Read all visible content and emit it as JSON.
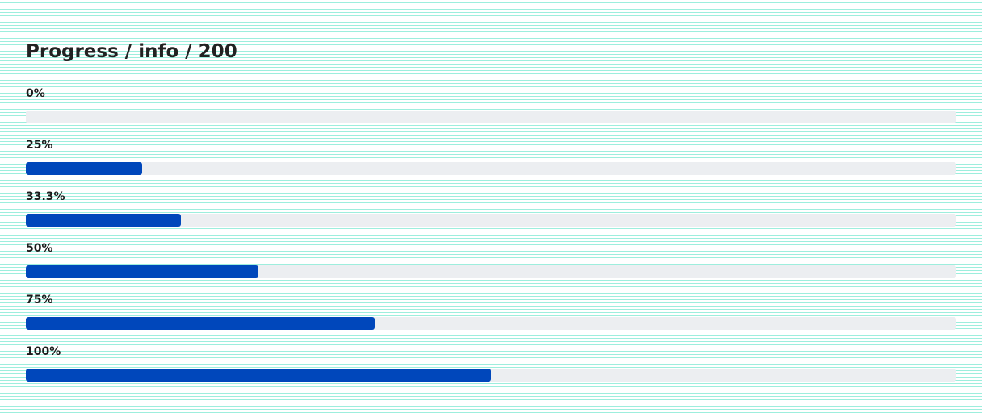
{
  "page": {
    "title": "Progress / info / 200"
  },
  "colors": {
    "fill": "#0047bb",
    "track": "#eceef1",
    "background_lines": "#9deedd"
  },
  "progress": [
    {
      "label": "0%",
      "value_fraction": 0.0
    },
    {
      "label": "25%",
      "value_fraction": 0.125
    },
    {
      "label": "33.3%",
      "value_fraction": 0.1667
    },
    {
      "label": "50%",
      "value_fraction": 0.25
    },
    {
      "label": "75%",
      "value_fraction": 0.375
    },
    {
      "label": "100%",
      "value_fraction": 0.5
    }
  ]
}
